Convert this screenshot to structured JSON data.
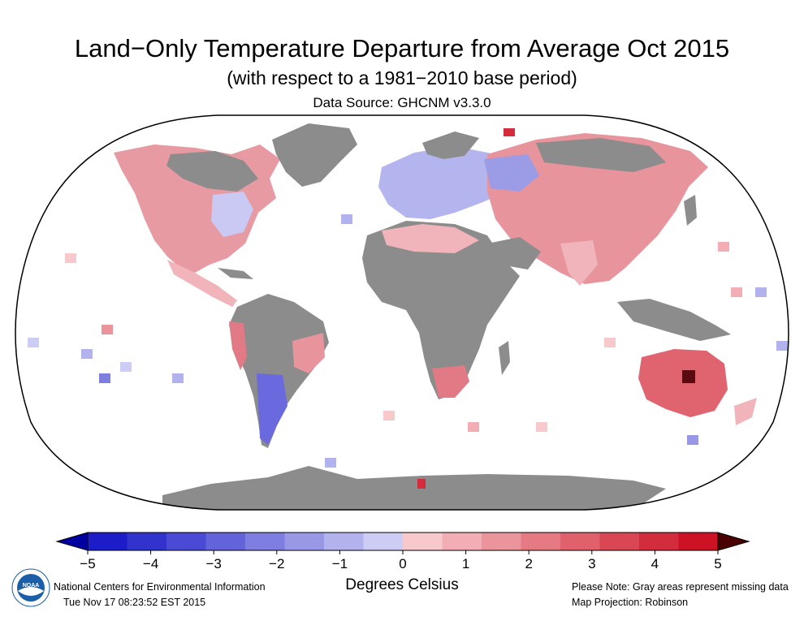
{
  "header": {
    "title": "Land−Only Temperature Departure from Average Oct 2015",
    "subtitle": "(with respect to a 1981−2010 base period)",
    "data_source": "Data Source: GHCNM v3.3.0"
  },
  "colorbar": {
    "tick_labels": [
      "−5",
      "−4",
      "−3",
      "−2",
      "−1",
      "0",
      "1",
      "2",
      "3",
      "4",
      "5"
    ],
    "units_label": "Degrees Celsius",
    "colors": [
      "#1c1cc8",
      "#3232cd",
      "#4a4ad4",
      "#6464da",
      "#7e7ee0",
      "#9898e7",
      "#b2b2ee",
      "#ccccf5",
      "#f7c8cc",
      "#f2aeb4",
      "#ec949c",
      "#e67a84",
      "#e0606c",
      "#d94654",
      "#d32c3c",
      "#cc1224"
    ],
    "low_arrow_color": "#0000a0",
    "high_arrow_color": "#4a0000"
  },
  "footer": {
    "org": "National Centers for Environmental Information",
    "timestamp": "Tue Nov 17 08:23:52 EST 2015",
    "note": "Please Note: Gray areas represent missing data",
    "projection": "Map Projection: Robinson",
    "logo_text": "NOAA"
  },
  "map": {
    "missing_color": "#8c8c8c",
    "ocean_color": "#ffffff"
  }
}
